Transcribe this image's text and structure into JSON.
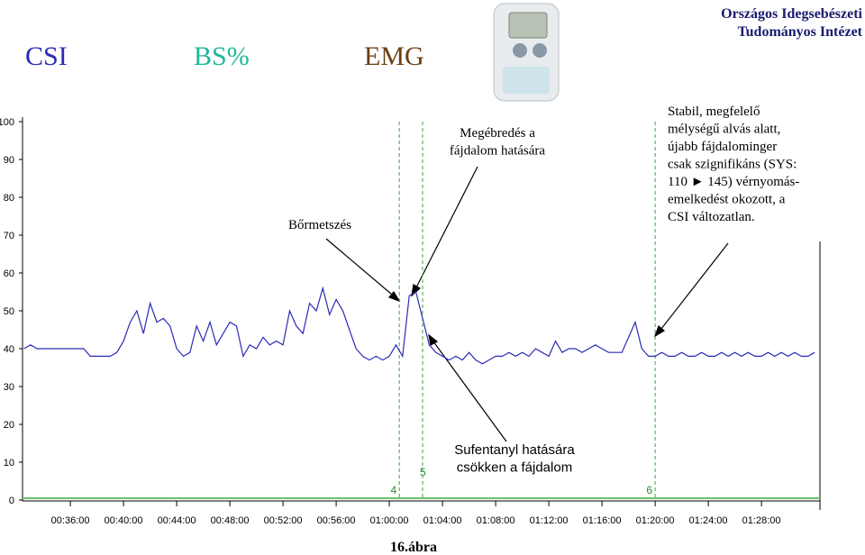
{
  "chart_data": {
    "type": "line",
    "institute": [
      "Országos Idegsebészeti",
      "Tudományos Intézet"
    ],
    "other_labels": [
      {
        "name": "BS%",
        "color": "#1fb89a"
      },
      {
        "name": "EMG",
        "color": "#6b3f12"
      }
    ],
    "caption": "16.ábra",
    "xlim": [
      32.4,
      92.4
    ],
    "xticks": [
      {
        "value": 36,
        "label": "00:36:00"
      },
      {
        "value": 40,
        "label": "00:40:00"
      },
      {
        "value": 44,
        "label": "00:44:00"
      },
      {
        "value": 48,
        "label": "00:48:00"
      },
      {
        "value": 52,
        "label": "00:52:00"
      },
      {
        "value": 56,
        "label": "00:56:00"
      },
      {
        "value": 60,
        "label": "01:00:00"
      },
      {
        "value": 64,
        "label": "01:04:00"
      },
      {
        "value": 68,
        "label": "01:08:00"
      },
      {
        "value": 72,
        "label": "01:12:00"
      },
      {
        "value": 76,
        "label": "01:16:00"
      },
      {
        "value": 80,
        "label": "01:20:00"
      },
      {
        "value": 84,
        "label": "01:24:00"
      },
      {
        "value": 88,
        "label": "01:28:00"
      }
    ],
    "ylim": [
      0,
      100
    ],
    "yticks": [
      0,
      10,
      20,
      30,
      40,
      50,
      60,
      70,
      80,
      90,
      100
    ],
    "x": [
      32.5,
      33,
      33.5,
      34,
      34.5,
      35,
      35.5,
      36,
      36.5,
      37,
      37.5,
      38,
      38.5,
      39,
      39.5,
      40,
      40.5,
      41,
      41.5,
      42,
      42.5,
      43,
      43.5,
      44,
      44.5,
      45,
      45.5,
      46,
      46.5,
      47,
      47.5,
      48,
      48.5,
      49,
      49.5,
      50,
      50.5,
      51,
      51.5,
      52,
      52.5,
      53,
      53.5,
      54,
      54.5,
      55,
      55.5,
      56,
      56.5,
      57,
      57.5,
      58,
      58.5,
      59,
      59.5,
      60,
      60.5,
      61,
      61.5,
      62,
      62.5,
      63,
      63.5,
      64,
      64.5,
      65,
      65.5,
      66,
      66.5,
      67,
      67.5,
      68,
      68.5,
      69,
      69.5,
      70,
      70.5,
      71,
      71.5,
      72,
      72.5,
      73,
      73.5,
      74,
      74.5,
      75,
      75.5,
      76,
      76.5,
      77,
      77.5,
      78,
      78.5,
      79,
      79.5,
      80,
      80.5,
      81,
      81.5,
      82,
      82.5,
      83,
      83.5,
      84,
      84.5,
      85,
      85.5,
      86,
      86.5,
      87,
      87.5,
      88,
      88.5,
      89,
      89.5,
      90,
      90.5,
      91,
      91.5,
      92
    ],
    "series": [
      {
        "name": "CSI",
        "color": "#2b2bb5",
        "values": [
          40,
          41,
          40,
          40,
          40,
          40,
          40,
          40,
          40,
          40,
          38,
          38,
          38,
          38,
          39,
          42,
          47,
          50,
          44,
          52,
          47,
          48,
          46,
          40,
          38,
          39,
          46,
          42,
          47,
          41,
          44,
          47,
          46,
          38,
          41,
          40,
          43,
          41,
          42,
          41,
          50,
          46,
          44,
          52,
          50,
          56,
          49,
          53,
          50,
          45,
          40,
          38,
          37,
          38,
          37,
          38,
          41,
          38,
          54,
          55,
          48,
          41,
          39,
          38,
          37,
          38,
          37,
          39,
          37,
          36,
          37,
          38,
          38,
          39,
          38,
          39,
          38,
          40,
          39,
          38,
          42,
          39,
          40,
          40,
          39,
          40,
          41,
          40,
          39,
          39,
          39,
          43,
          47,
          40,
          38,
          38,
          39,
          38,
          38,
          39,
          38,
          38,
          39,
          38,
          38,
          39,
          38,
          39,
          38,
          39,
          38,
          38,
          39,
          38,
          39,
          38,
          39,
          38,
          38,
          39
        ]
      }
    ],
    "markers": [
      {
        "x": 60.75,
        "label": "4"
      },
      {
        "x": 62.5,
        "label": "5"
      },
      {
        "x": 80,
        "label": "6"
      }
    ],
    "annotations": [
      {
        "lines": [
          "Bőrmetszés"
        ]
      },
      {
        "lines": [
          "Megébredés a",
          "fájdalom hatására"
        ]
      },
      {
        "lines": [
          "Stabil, megfelelő",
          "mélységű alvás alatt,",
          "újabb fájdalominger",
          "csak  szignifikáns (SYS:",
          "110 ► 145) vérnyomás-",
          "emelkedést okozott, a",
          "CSI változatlan."
        ]
      },
      {
        "lines": [
          "Sufentanyl hatására",
          "csökken a fájdalom"
        ]
      }
    ]
  }
}
